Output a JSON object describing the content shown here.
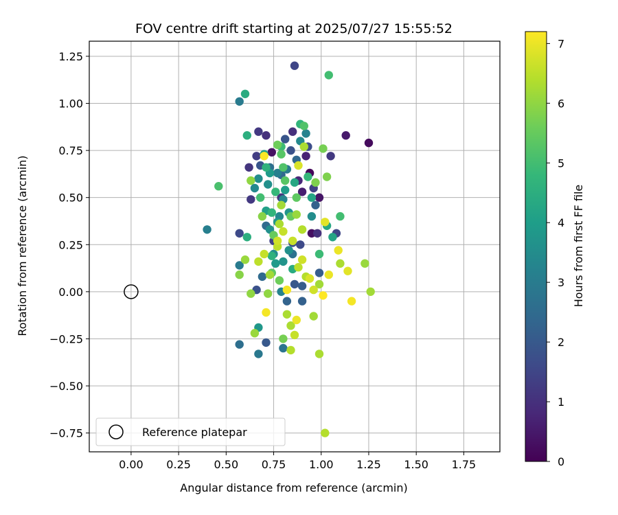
{
  "chart_data": {
    "type": "scatter",
    "title": "FOV centre drift starting at 2025/07/27 15:55:52",
    "xlabel": "Angular distance from reference (arcmin)",
    "ylabel": "Rotation from reference (arcmin)",
    "xlim": [
      -0.22,
      1.94
    ],
    "ylim": [
      -0.85,
      1.33
    ],
    "xticks": [
      0.0,
      0.25,
      0.5,
      0.75,
      1.0,
      1.25,
      1.5,
      1.75
    ],
    "xtick_labels": [
      "0.00",
      "0.25",
      "0.50",
      "0.75",
      "1.00",
      "1.25",
      "1.50",
      "1.75"
    ],
    "yticks": [
      -0.75,
      -0.5,
      -0.25,
      0.0,
      0.25,
      0.5,
      0.75,
      1.0,
      1.25
    ],
    "ytick_labels": [
      "−0.75",
      "−0.50",
      "−0.25",
      "0.00",
      "0.25",
      "0.50",
      "0.75",
      "1.00",
      "1.25"
    ],
    "grid": true,
    "legend": {
      "label": "Reference platepar",
      "location": "lower-left"
    },
    "reference_point": {
      "x": 0.0,
      "y": 0.0
    },
    "colorbar": {
      "label": "Hours from first FF file",
      "min": 0,
      "max": 7.2,
      "ticks": [
        0,
        1,
        2,
        3,
        4,
        5,
        6,
        7
      ],
      "colormap": "viridis"
    },
    "points": [
      {
        "x": 0.94,
        "y": 0.63,
        "h": 0.1
      },
      {
        "x": 0.95,
        "y": 0.31,
        "h": 0.3
      },
      {
        "x": 0.99,
        "y": 0.5,
        "h": 0.4
      },
      {
        "x": 1.25,
        "y": 0.79,
        "h": 0.2
      },
      {
        "x": 1.13,
        "y": 0.83,
        "h": 0.5
      },
      {
        "x": 0.74,
        "y": 0.74,
        "h": 0.3
      },
      {
        "x": 0.9,
        "y": 0.53,
        "h": 0.6
      },
      {
        "x": 0.88,
        "y": 0.59,
        "h": 0.8
      },
      {
        "x": 0.92,
        "y": 0.72,
        "h": 0.7
      },
      {
        "x": 0.85,
        "y": 0.85,
        "h": 1.0
      },
      {
        "x": 0.71,
        "y": 0.83,
        "h": 1.0
      },
      {
        "x": 0.67,
        "y": 0.85,
        "h": 1.2
      },
      {
        "x": 0.62,
        "y": 0.66,
        "h": 1.1
      },
      {
        "x": 0.63,
        "y": 0.49,
        "h": 1.2
      },
      {
        "x": 0.66,
        "y": 0.72,
        "h": 1.3
      },
      {
        "x": 0.79,
        "y": 0.5,
        "h": 1.1
      },
      {
        "x": 0.96,
        "y": 0.55,
        "h": 1.4
      },
      {
        "x": 1.05,
        "y": 0.72,
        "h": 1.2
      },
      {
        "x": 0.86,
        "y": 1.2,
        "h": 1.5
      },
      {
        "x": 0.75,
        "y": 0.27,
        "h": 1.4
      },
      {
        "x": 0.98,
        "y": 0.31,
        "h": 1.0
      },
      {
        "x": 1.08,
        "y": 0.31,
        "h": 1.5
      },
      {
        "x": 0.57,
        "y": 0.31,
        "h": 1.6
      },
      {
        "x": 0.85,
        "y": 0.26,
        "h": 1.7
      },
      {
        "x": 0.89,
        "y": 0.25,
        "h": 1.6
      },
      {
        "x": 0.84,
        "y": 0.75,
        "h": 1.8
      },
      {
        "x": 0.81,
        "y": 0.81,
        "h": 1.9
      },
      {
        "x": 0.93,
        "y": 0.77,
        "h": 1.7
      },
      {
        "x": 0.68,
        "y": 0.67,
        "h": 1.9
      },
      {
        "x": 0.71,
        "y": -0.27,
        "h": 2.0
      },
      {
        "x": 0.66,
        "y": 0.01,
        "h": 1.8
      },
      {
        "x": 0.86,
        "y": 0.04,
        "h": 2.0
      },
      {
        "x": 0.9,
        "y": 0.03,
        "h": 2.1
      },
      {
        "x": 0.9,
        "y": -0.05,
        "h": 2.2
      },
      {
        "x": 0.82,
        "y": -0.05,
        "h": 2.3
      },
      {
        "x": 0.79,
        "y": 0.62,
        "h": 2.4
      },
      {
        "x": 0.97,
        "y": 0.46,
        "h": 2.2
      },
      {
        "x": 0.99,
        "y": 0.1,
        "h": 2.1
      },
      {
        "x": 0.71,
        "y": 0.35,
        "h": 2.5
      },
      {
        "x": 0.73,
        "y": 0.66,
        "h": 2.6
      },
      {
        "x": 0.87,
        "y": 0.7,
        "h": 2.4
      },
      {
        "x": 0.85,
        "y": 0.2,
        "h": 2.7
      },
      {
        "x": 0.69,
        "y": 0.08,
        "h": 2.5
      },
      {
        "x": 0.8,
        "y": -0.3,
        "h": 2.8
      },
      {
        "x": 0.57,
        "y": -0.28,
        "h": 2.6
      },
      {
        "x": 0.67,
        "y": -0.33,
        "h": 2.9
      },
      {
        "x": 0.57,
        "y": 1.01,
        "h": 3.0
      },
      {
        "x": 0.4,
        "y": 0.33,
        "h": 3.1
      },
      {
        "x": 0.57,
        "y": 0.14,
        "h": 3.0
      },
      {
        "x": 0.79,
        "y": 0.0,
        "h": 3.2
      },
      {
        "x": 0.82,
        "y": 0.65,
        "h": 3.0
      },
      {
        "x": 0.8,
        "y": 0.49,
        "h": 3.3
      },
      {
        "x": 0.92,
        "y": 0.84,
        "h": 3.2
      },
      {
        "x": 0.89,
        "y": 0.8,
        "h": 3.4
      },
      {
        "x": 0.77,
        "y": 0.63,
        "h": 3.1
      },
      {
        "x": 0.78,
        "y": 0.4,
        "h": 3.3
      },
      {
        "x": 0.75,
        "y": 0.2,
        "h": 3.5
      },
      {
        "x": 0.73,
        "y": 0.33,
        "h": 3.6
      },
      {
        "x": 0.65,
        "y": 0.55,
        "h": 3.4
      },
      {
        "x": 0.67,
        "y": 0.6,
        "h": 3.5
      },
      {
        "x": 0.72,
        "y": 0.57,
        "h": 3.6
      },
      {
        "x": 0.83,
        "y": 0.42,
        "h": 3.7
      },
      {
        "x": 0.95,
        "y": 0.4,
        "h": 3.5
      },
      {
        "x": 0.77,
        "y": 0.37,
        "h": 3.8
      },
      {
        "x": 0.8,
        "y": 0.16,
        "h": 3.7
      },
      {
        "x": 0.76,
        "y": 0.15,
        "h": 3.9
      },
      {
        "x": 0.83,
        "y": 0.22,
        "h": 3.6
      },
      {
        "x": 0.67,
        "y": -0.19,
        "h": 3.8
      },
      {
        "x": 0.73,
        "y": 0.63,
        "h": 3.9
      },
      {
        "x": 0.81,
        "y": 0.54,
        "h": 4.0
      },
      {
        "x": 0.7,
        "y": 0.73,
        "h": 4.0
      },
      {
        "x": 0.71,
        "y": 0.43,
        "h": 4.1
      },
      {
        "x": 0.95,
        "y": 0.5,
        "h": 4.2
      },
      {
        "x": 1.03,
        "y": 0.35,
        "h": 4.3
      },
      {
        "x": 1.06,
        "y": 0.29,
        "h": 4.2
      },
      {
        "x": 0.85,
        "y": 0.12,
        "h": 4.4
      },
      {
        "x": 0.86,
        "y": 0.58,
        "h": 4.3
      },
      {
        "x": 0.61,
        "y": 0.29,
        "h": 4.5
      },
      {
        "x": 0.6,
        "y": 1.05,
        "h": 4.4
      },
      {
        "x": 0.61,
        "y": 0.83,
        "h": 4.5
      },
      {
        "x": 0.71,
        "y": 0.66,
        "h": 4.6
      },
      {
        "x": 0.74,
        "y": 0.42,
        "h": 4.7
      },
      {
        "x": 0.74,
        "y": 0.19,
        "h": 4.6
      },
      {
        "x": 0.76,
        "y": 0.53,
        "h": 4.8
      },
      {
        "x": 0.79,
        "y": 0.77,
        "h": 4.9
      },
      {
        "x": 0.89,
        "y": 0.89,
        "h": 4.7
      },
      {
        "x": 0.93,
        "y": 0.61,
        "h": 4.8
      },
      {
        "x": 0.99,
        "y": 0.2,
        "h": 4.9
      },
      {
        "x": 1.04,
        "y": 1.15,
        "h": 5.0
      },
      {
        "x": 1.1,
        "y": 0.4,
        "h": 5.0
      },
      {
        "x": 0.46,
        "y": 0.56,
        "h": 5.1
      },
      {
        "x": 0.68,
        "y": 0.5,
        "h": 5.0
      },
      {
        "x": 0.8,
        "y": 0.66,
        "h": 5.2
      },
      {
        "x": 0.81,
        "y": 0.59,
        "h": 5.3
      },
      {
        "x": 0.91,
        "y": 0.88,
        "h": 5.2
      },
      {
        "x": 0.87,
        "y": 0.5,
        "h": 5.4
      },
      {
        "x": 0.79,
        "y": 0.73,
        "h": 5.3
      },
      {
        "x": 0.75,
        "y": 0.3,
        "h": 5.5
      },
      {
        "x": 0.74,
        "y": 0.1,
        "h": 5.4
      },
      {
        "x": 0.78,
        "y": 0.06,
        "h": 5.6
      },
      {
        "x": 0.84,
        "y": 0.4,
        "h": 5.5
      },
      {
        "x": 0.77,
        "y": 0.78,
        "h": 5.6
      },
      {
        "x": 1.01,
        "y": 0.76,
        "h": 5.7
      },
      {
        "x": 0.8,
        "y": -0.25,
        "h": 5.7
      },
      {
        "x": 0.97,
        "y": 0.58,
        "h": 5.8
      },
      {
        "x": 1.03,
        "y": 0.61,
        "h": 5.8
      },
      {
        "x": 0.69,
        "y": 0.4,
        "h": 5.9
      },
      {
        "x": 0.63,
        "y": 0.59,
        "h": 6.0
      },
      {
        "x": 0.57,
        "y": 0.09,
        "h": 5.9
      },
      {
        "x": 0.6,
        "y": 0.17,
        "h": 6.1
      },
      {
        "x": 0.63,
        "y": -0.01,
        "h": 6.0
      },
      {
        "x": 0.65,
        "y": -0.22,
        "h": 6.1
      },
      {
        "x": 0.73,
        "y": 0.09,
        "h": 6.2
      },
      {
        "x": 0.72,
        "y": -0.01,
        "h": 6.0
      },
      {
        "x": 0.79,
        "y": 0.46,
        "h": 6.2
      },
      {
        "x": 0.78,
        "y": 0.36,
        "h": 6.3
      },
      {
        "x": 0.87,
        "y": 0.41,
        "h": 6.1
      },
      {
        "x": 0.91,
        "y": 0.77,
        "h": 6.3
      },
      {
        "x": 0.9,
        "y": 0.33,
        "h": 6.4
      },
      {
        "x": 0.99,
        "y": 0.04,
        "h": 6.2
      },
      {
        "x": 1.1,
        "y": 0.15,
        "h": 6.3
      },
      {
        "x": 1.23,
        "y": 0.15,
        "h": 6.1
      },
      {
        "x": 1.26,
        "y": 0.0,
        "h": 6.2
      },
      {
        "x": 0.84,
        "y": -0.18,
        "h": 6.3
      },
      {
        "x": 0.84,
        "y": -0.31,
        "h": 6.4
      },
      {
        "x": 0.96,
        "y": -0.13,
        "h": 6.2
      },
      {
        "x": 0.99,
        "y": -0.33,
        "h": 6.3
      },
      {
        "x": 1.02,
        "y": -0.75,
        "h": 6.4
      },
      {
        "x": 0.82,
        "y": -0.12,
        "h": 6.3
      },
      {
        "x": 0.88,
        "y": 0.13,
        "h": 6.5
      },
      {
        "x": 0.92,
        "y": 0.08,
        "h": 6.4
      },
      {
        "x": 0.86,
        "y": -0.23,
        "h": 6.6
      },
      {
        "x": 0.67,
        "y": 0.16,
        "h": 6.5
      },
      {
        "x": 0.7,
        "y": 0.2,
        "h": 6.6
      },
      {
        "x": 0.77,
        "y": 0.24,
        "h": 6.5
      },
      {
        "x": 0.8,
        "y": 0.32,
        "h": 6.6
      },
      {
        "x": 0.77,
        "y": 0.27,
        "h": 6.7
      },
      {
        "x": 0.85,
        "y": 0.27,
        "h": 6.6
      },
      {
        "x": 0.9,
        "y": 0.17,
        "h": 6.7
      },
      {
        "x": 0.94,
        "y": 0.07,
        "h": 6.8
      },
      {
        "x": 0.96,
        "y": 0.01,
        "h": 6.7
      },
      {
        "x": 0.88,
        "y": 0.67,
        "h": 6.8
      },
      {
        "x": 1.02,
        "y": 0.37,
        "h": 6.9
      },
      {
        "x": 1.04,
        "y": 0.09,
        "h": 7.0
      },
      {
        "x": 1.09,
        "y": 0.22,
        "h": 7.0
      },
      {
        "x": 1.14,
        "y": 0.11,
        "h": 6.9
      },
      {
        "x": 1.16,
        "y": -0.05,
        "h": 7.1
      },
      {
        "x": 1.01,
        "y": -0.02,
        "h": 7.2
      },
      {
        "x": 0.7,
        "y": 0.72,
        "h": 7.2
      },
      {
        "x": 0.71,
        "y": -0.11,
        "h": 7.1
      },
      {
        "x": 0.82,
        "y": 0.01,
        "h": 7.1
      },
      {
        "x": 0.87,
        "y": -0.15,
        "h": 7.0
      }
    ]
  }
}
